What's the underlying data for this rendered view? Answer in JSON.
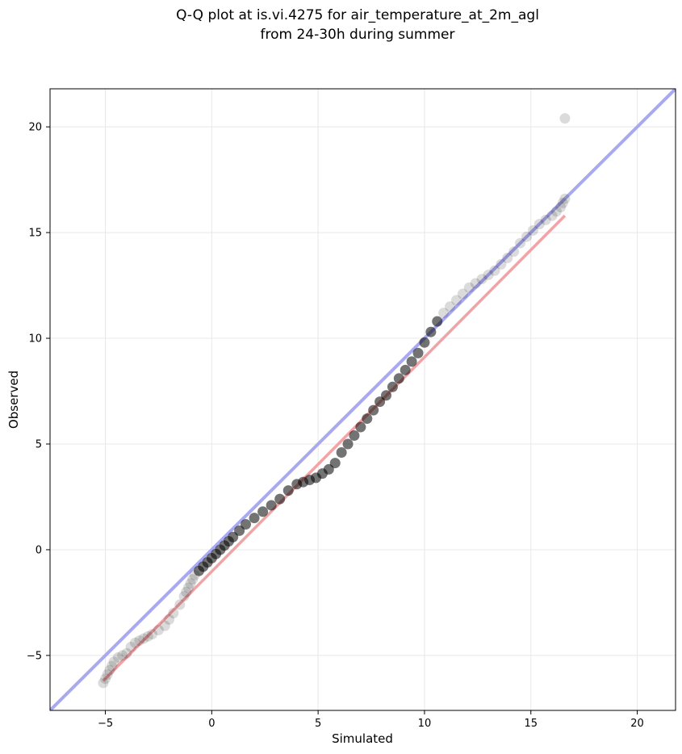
{
  "chart_data": {
    "type": "scatter",
    "title": [
      "Q-Q plot at is.vi.4275 for air_temperature_at_2m_agl",
      "from 24-30h during summer"
    ],
    "xlabel": "Simulated",
    "ylabel": "Observed",
    "xlim": [
      -7.6,
      21.8
    ],
    "ylim": [
      -7.6,
      21.8
    ],
    "xticks": [
      -5,
      0,
      5,
      10,
      15,
      20
    ],
    "yticks": [
      -5,
      0,
      5,
      10,
      15,
      20
    ],
    "xtick_labels": [
      "−5",
      "0",
      "5",
      "10",
      "15",
      "20"
    ],
    "ytick_labels": [
      "−5",
      "0",
      "5",
      "10",
      "15",
      "20"
    ],
    "grid": true,
    "colors": {
      "points": "#000000",
      "identity_line": "#a9a9f2",
      "fit_line": "#f2a3a6"
    },
    "identity_line": {
      "x": [
        -7.6,
        21.8
      ],
      "y": [
        -7.6,
        21.8
      ]
    },
    "fit_line": {
      "x": [
        -5.1,
        16.6
      ],
      "y": [
        -6.2,
        15.8
      ]
    },
    "points_x": [
      -5.1,
      -5.0,
      -4.9,
      -4.8,
      -4.7,
      -4.6,
      -4.4,
      -4.2,
      -4.0,
      -3.8,
      -3.6,
      -3.4,
      -3.2,
      -3.0,
      -2.8,
      -2.5,
      -2.2,
      -2.0,
      -1.8,
      -1.5,
      -1.3,
      -1.2,
      -1.1,
      -1.0,
      -0.9,
      -0.8,
      -0.6,
      -0.4,
      -0.2,
      0.0,
      0.2,
      0.4,
      0.6,
      0.8,
      1.0,
      1.3,
      1.6,
      2.0,
      2.4,
      2.8,
      3.2,
      3.6,
      4.0,
      4.3,
      4.6,
      4.9,
      5.2,
      5.5,
      5.8,
      6.1,
      6.4,
      6.7,
      7.0,
      7.3,
      7.6,
      7.9,
      8.2,
      8.5,
      8.8,
      9.1,
      9.4,
      9.7,
      10.0,
      10.3,
      10.6,
      10.9,
      11.2,
      11.5,
      11.8,
      12.1,
      12.4,
      12.7,
      13.0,
      13.3,
      13.6,
      13.9,
      14.2,
      14.5,
      14.8,
      15.1,
      15.4,
      15.7,
      16.0,
      16.2,
      16.4,
      16.5,
      16.6,
      16.6
    ],
    "points_y": [
      -6.3,
      -6.1,
      -5.9,
      -5.7,
      -5.5,
      -5.3,
      -5.1,
      -5.0,
      -4.9,
      -4.6,
      -4.4,
      -4.3,
      -4.2,
      -4.1,
      -4.0,
      -3.8,
      -3.6,
      -3.3,
      -3.0,
      -2.6,
      -2.2,
      -2.0,
      -1.8,
      -1.6,
      -1.4,
      -1.2,
      -1.0,
      -0.8,
      -0.6,
      -0.4,
      -0.2,
      0.0,
      0.2,
      0.4,
      0.6,
      0.9,
      1.2,
      1.5,
      1.8,
      2.1,
      2.4,
      2.8,
      3.1,
      3.2,
      3.3,
      3.4,
      3.6,
      3.8,
      4.1,
      4.6,
      5.0,
      5.4,
      5.8,
      6.2,
      6.6,
      7.0,
      7.3,
      7.7,
      8.1,
      8.5,
      8.9,
      9.3,
      9.8,
      10.3,
      10.8,
      11.2,
      11.5,
      11.8,
      12.1,
      12.4,
      12.6,
      12.8,
      13.0,
      13.2,
      13.5,
      13.8,
      14.1,
      14.5,
      14.8,
      15.1,
      15.4,
      15.6,
      15.8,
      16.0,
      16.2,
      16.4,
      16.6,
      20.4
    ]
  }
}
